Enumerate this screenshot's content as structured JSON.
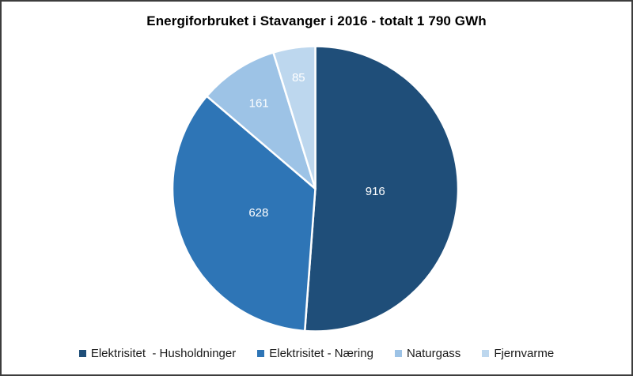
{
  "window": {
    "background_color": "#ffffff",
    "frame_border_color": "#3d3d3d"
  },
  "chart_data": {
    "type": "pie",
    "title": "Energiforbruket i Stavanger i 2016 - totalt 1 790 GWh",
    "total_label": "1 790 GWh",
    "categories": [
      "Elektrisitet  - Husholdninger",
      "Elektrisitet - Næring",
      "Naturgass",
      "Fjernvarme"
    ],
    "values": [
      916,
      628,
      161,
      85
    ],
    "data_labels": [
      "916",
      "628",
      "161",
      "85"
    ],
    "colors": [
      "#1F4E79",
      "#2E75B6",
      "#9DC3E6",
      "#BDD7EE"
    ],
    "slice_border_color": "#FFFFFF",
    "data_label_color": "#FFFFFF",
    "legend_position": "bottom",
    "start_angle_deg": 0,
    "direction": "clockwise"
  }
}
